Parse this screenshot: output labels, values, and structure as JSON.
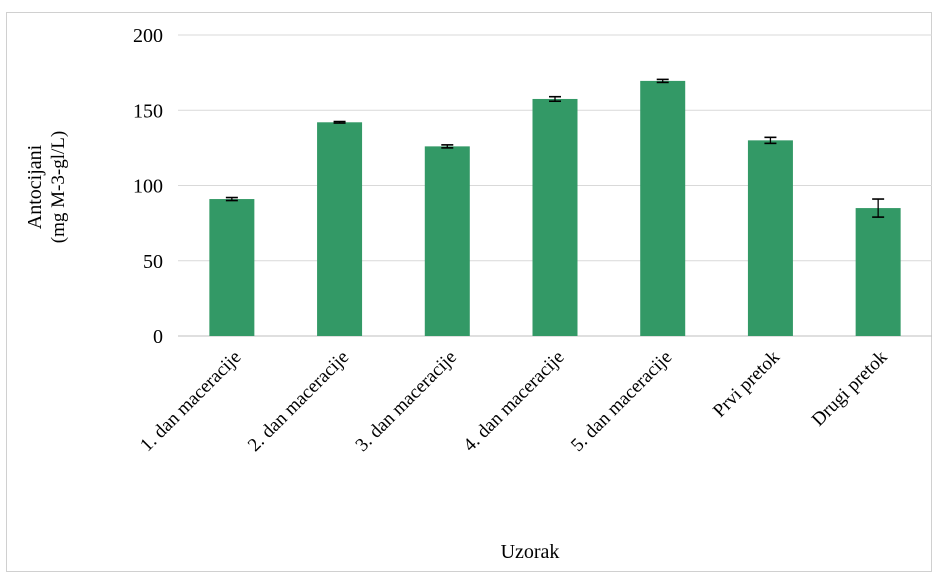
{
  "chart_data": {
    "type": "bar",
    "categories": [
      "1. dan maceracije",
      "2. dan maceracije",
      "3. dan maceracije",
      "4. dan maceracije",
      "5. dan maceracije",
      "Prvi pretok",
      "Drugi pretok"
    ],
    "values": [
      91,
      142,
      126,
      157.5,
      169.5,
      130,
      85
    ],
    "errors": [
      1,
      0.5,
      1,
      1.5,
      1,
      2,
      6
    ],
    "ylim": [
      0,
      200
    ],
    "yticks": [
      0,
      50,
      100,
      150,
      200
    ],
    "xlabel": "Uzorak",
    "ylabel_line1": "Antocijani",
    "ylabel_line2": "(mg M-3-gl/L)",
    "grid": true,
    "bar_color": "#339966",
    "grid_color": "#d9d9d9",
    "axis_color": "#bfbfbf",
    "error_color": "#000000"
  }
}
